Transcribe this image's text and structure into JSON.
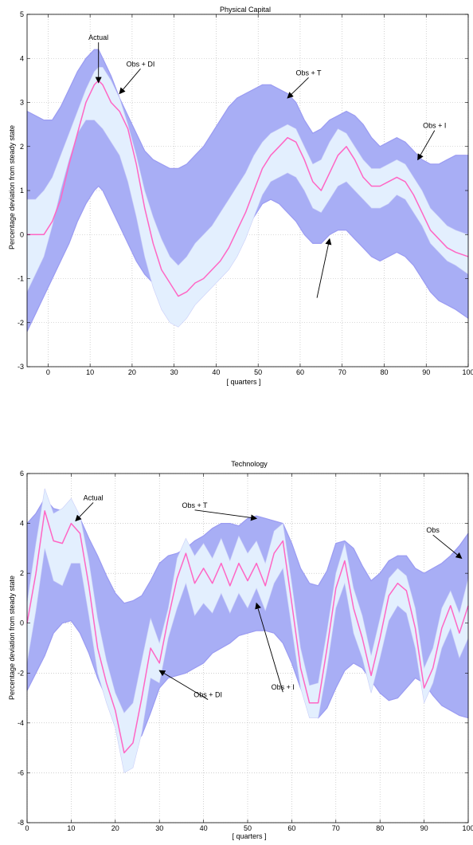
{
  "chart_data": [
    {
      "type": "area",
      "title": "Physical Capital",
      "xlabel": "[ quarters ]",
      "ylabel": "Percentage deviation from steady state",
      "xlim": [
        -5,
        100
      ],
      "ylim": [
        -3,
        5
      ],
      "xticks": [
        "0",
        "10",
        "20",
        "30",
        "40",
        "50",
        "60",
        "70",
        "80",
        "90",
        "100"
      ],
      "yticks": [
        "-3",
        "-2",
        "-1",
        "0",
        "1",
        "2",
        "3",
        "4",
        "5"
      ],
      "grid": true,
      "colors": {
        "outer_band": "#a8aef5",
        "outer_band_dark": "#9b9cf2",
        "inner_band": "#e3effe",
        "actual_line": "#ff66c4"
      },
      "x": [
        -5,
        -3,
        -1,
        1,
        3,
        5,
        7,
        9,
        11,
        12,
        13,
        15,
        17,
        19,
        21,
        23,
        25,
        27,
        29,
        31,
        33,
        35,
        37,
        39,
        41,
        43,
        45,
        47,
        49,
        51,
        53,
        55,
        57,
        59,
        61,
        63,
        65,
        67,
        69,
        71,
        73,
        75,
        77,
        79,
        81,
        83,
        85,
        87,
        89,
        91,
        93,
        95,
        97,
        100
      ],
      "series": [
        {
          "name": "Obs",
          "role": "outer-upper",
          "values": [
            2.8,
            2.7,
            2.6,
            2.6,
            2.9,
            3.3,
            3.7,
            4.0,
            4.2,
            4.2,
            4.0,
            3.6,
            3.1,
            2.7,
            2.3,
            1.9,
            1.7,
            1.6,
            1.5,
            1.5,
            1.6,
            1.8,
            2.0,
            2.3,
            2.6,
            2.9,
            3.1,
            3.2,
            3.3,
            3.4,
            3.4,
            3.3,
            3.2,
            3.0,
            2.6,
            2.3,
            2.4,
            2.6,
            2.7,
            2.8,
            2.7,
            2.5,
            2.2,
            2.0,
            2.1,
            2.2,
            2.1,
            1.9,
            1.7,
            1.6,
            1.6,
            1.7,
            1.8,
            1.8
          ]
        },
        {
          "name": "Obs + DI",
          "role": "inner-upper",
          "values": [
            0.8,
            0.8,
            1.0,
            1.3,
            1.8,
            2.3,
            2.8,
            3.3,
            3.7,
            3.8,
            3.8,
            3.5,
            3.1,
            2.5,
            1.8,
            1.0,
            0.4,
            -0.1,
            -0.5,
            -0.7,
            -0.5,
            -0.2,
            0.0,
            0.2,
            0.5,
            0.8,
            1.1,
            1.4,
            1.8,
            2.1,
            2.3,
            2.4,
            2.5,
            2.4,
            2.0,
            1.6,
            1.7,
            2.1,
            2.4,
            2.3,
            2.0,
            1.7,
            1.5,
            1.5,
            1.6,
            1.7,
            1.6,
            1.3,
            1.0,
            0.6,
            0.4,
            0.2,
            0.1,
            0.0
          ]
        },
        {
          "name": "Actual",
          "role": "line",
          "values": [
            0.0,
            0.0,
            0.0,
            0.3,
            0.8,
            1.6,
            2.3,
            3.0,
            3.4,
            3.5,
            3.4,
            3.0,
            2.8,
            2.4,
            1.6,
            0.6,
            -0.2,
            -0.8,
            -1.1,
            -1.4,
            -1.3,
            -1.1,
            -1.0,
            -0.8,
            -0.6,
            -0.3,
            0.1,
            0.5,
            1.0,
            1.5,
            1.8,
            2.0,
            2.2,
            2.1,
            1.7,
            1.2,
            1.0,
            1.4,
            1.8,
            2.0,
            1.7,
            1.3,
            1.1,
            1.1,
            1.2,
            1.3,
            1.2,
            0.9,
            0.5,
            0.1,
            -0.1,
            -0.3,
            -0.4,
            -0.5
          ]
        },
        {
          "name": "Obs + T",
          "role": "inner-lower",
          "values": [
            -1.3,
            -0.9,
            -0.5,
            0.2,
            1.0,
            1.7,
            2.3,
            2.6,
            2.6,
            2.5,
            2.4,
            2.1,
            1.8,
            1.2,
            0.4,
            -0.5,
            -1.2,
            -1.7,
            -2.0,
            -2.1,
            -1.9,
            -1.6,
            -1.4,
            -1.2,
            -1.0,
            -0.8,
            -0.5,
            -0.1,
            0.4,
            0.9,
            1.2,
            1.3,
            1.4,
            1.3,
            1.0,
            0.6,
            0.5,
            0.8,
            1.1,
            1.2,
            1.0,
            0.8,
            0.6,
            0.6,
            0.7,
            0.9,
            0.8,
            0.5,
            0.2,
            -0.2,
            -0.4,
            -0.6,
            -0.7,
            -0.9
          ]
        },
        {
          "name": "Obs + I",
          "role": "outer-lower",
          "values": [
            -2.2,
            -1.8,
            -1.4,
            -1.0,
            -0.6,
            -0.2,
            0.3,
            0.7,
            1.0,
            1.1,
            1.0,
            0.6,
            0.2,
            -0.2,
            -0.6,
            -0.9,
            -1.1,
            -1.2,
            -1.3,
            -1.3,
            -1.3,
            -1.2,
            -1.1,
            -0.9,
            -0.7,
            -0.5,
            -0.2,
            0.1,
            0.4,
            0.7,
            0.8,
            0.7,
            0.5,
            0.3,
            0.0,
            -0.2,
            -0.2,
            0.0,
            0.1,
            0.1,
            -0.1,
            -0.3,
            -0.5,
            -0.6,
            -0.5,
            -0.4,
            -0.5,
            -0.7,
            -1.0,
            -1.3,
            -1.5,
            -1.6,
            -1.7,
            -1.9
          ]
        }
      ],
      "annotations": [
        {
          "text": "Actual",
          "x": 12,
          "y": 4.4,
          "target_x": 12,
          "target_y": 3.45
        },
        {
          "text": "Obs + DI",
          "x": 22,
          "y": 3.8,
          "target_x": 17,
          "target_y": 3.2
        },
        {
          "text": "Obs + T",
          "x": 62,
          "y": 3.6,
          "target_x": 57,
          "target_y": 3.1
        },
        {
          "text": "Obs + I",
          "x": 92,
          "y": 2.4,
          "target_x": 88,
          "target_y": 1.7
        },
        {
          "text": "",
          "x": 64,
          "y": -1.4,
          "target_x": 67,
          "target_y": -0.1
        }
      ]
    },
    {
      "type": "area",
      "title": "Technology",
      "xlabel": "[ quarters ]",
      "ylabel": "Percentage deviation from steady state",
      "xlim": [
        0,
        100
      ],
      "ylim": [
        -8,
        6
      ],
      "xticks": [
        "0",
        "10",
        "20",
        "30",
        "40",
        "50",
        "60",
        "70",
        "80",
        "90",
        "100"
      ],
      "yticks": [
        "-8",
        "-6",
        "-4",
        "-2",
        "0",
        "2",
        "4",
        "6"
      ],
      "grid": true,
      "colors": {
        "outer_band": "#a8aef5",
        "outer_band_dark": "#9b9cf2",
        "inner_band": "#e3effe",
        "actual_line": "#ff66c4"
      },
      "x": [
        0,
        2,
        4,
        6,
        8,
        10,
        12,
        14,
        16,
        18,
        20,
        22,
        24,
        26,
        28,
        30,
        32,
        34,
        36,
        38,
        40,
        42,
        44,
        46,
        48,
        50,
        52,
        54,
        56,
        58,
        60,
        62,
        64,
        66,
        68,
        70,
        72,
        74,
        76,
        78,
        80,
        82,
        84,
        86,
        88,
        90,
        92,
        94,
        96,
        98,
        100
      ],
      "series": [
        {
          "name": "Obs",
          "role": "outer-upper",
          "values": [
            4.0,
            4.4,
            5.0,
            4.6,
            4.5,
            4.8,
            4.2,
            3.4,
            2.7,
            1.9,
            1.2,
            0.8,
            0.9,
            1.1,
            1.7,
            2.4,
            2.7,
            2.8,
            3.0,
            3.3,
            3.5,
            3.8,
            4.0,
            4.0,
            3.9,
            4.2,
            4.3,
            4.2,
            4.1,
            4.0,
            3.2,
            2.2,
            1.6,
            1.5,
            2.1,
            3.2,
            3.3,
            3.0,
            2.3,
            1.7,
            2.0,
            2.5,
            2.7,
            2.7,
            2.2,
            2.0,
            2.2,
            2.4,
            2.7,
            3.1,
            3.6
          ]
        },
        {
          "name": "Obs + DI",
          "role": "inner-upper",
          "values": [
            0.8,
            3.2,
            5.4,
            4.4,
            4.6,
            5.0,
            4.3,
            2.5,
            0.2,
            -1.5,
            -2.8,
            -3.6,
            -3.2,
            -1.5,
            0.2,
            -0.8,
            0.6,
            2.6,
            3.4,
            2.7,
            3.2,
            2.6,
            3.4,
            2.5,
            3.5,
            2.8,
            3.3,
            2.4,
            3.7,
            4.0,
            1.6,
            -1.0,
            -2.5,
            -2.4,
            -0.3,
            2.0,
            3.2,
            1.4,
            0.3,
            -1.3,
            0.2,
            1.8,
            2.2,
            1.9,
            0.6,
            -1.8,
            -1.0,
            0.6,
            1.3,
            0.4,
            1.8
          ]
        },
        {
          "name": "Actual",
          "role": "line",
          "values": [
            0.0,
            2.0,
            4.5,
            3.3,
            3.2,
            4.0,
            3.6,
            1.5,
            -1.0,
            -2.4,
            -3.5,
            -5.2,
            -4.8,
            -3.0,
            -1.0,
            -1.6,
            0.2,
            1.8,
            2.8,
            1.6,
            2.2,
            1.6,
            2.4,
            1.5,
            2.4,
            1.7,
            2.4,
            1.5,
            2.8,
            3.3,
            0.8,
            -1.8,
            -3.2,
            -3.2,
            -1.0,
            1.4,
            2.5,
            0.6,
            -0.6,
            -2.1,
            -0.6,
            1.1,
            1.6,
            1.3,
            -0.2,
            -2.6,
            -1.8,
            -0.2,
            0.7,
            -0.4,
            0.7
          ]
        },
        {
          "name": "Obs + T",
          "role": "inner-lower",
          "values": [
            -1.6,
            0.5,
            3.0,
            1.7,
            1.5,
            2.4,
            2.4,
            0.3,
            -2.0,
            -3.2,
            -4.2,
            -6.0,
            -5.8,
            -4.4,
            -2.2,
            -2.4,
            -0.6,
            0.6,
            1.6,
            0.3,
            0.8,
            0.4,
            1.2,
            0.4,
            1.2,
            0.6,
            1.4,
            0.5,
            1.6,
            2.2,
            -0.2,
            -2.6,
            -3.8,
            -3.8,
            -1.8,
            0.6,
            1.6,
            -0.4,
            -1.4,
            -2.8,
            -1.4,
            0.1,
            0.7,
            0.4,
            -1.0,
            -3.2,
            -2.4,
            -1.0,
            -0.2,
            -1.4,
            -0.6
          ]
        },
        {
          "name": "Obs + I",
          "role": "outer-lower",
          "values": [
            -2.7,
            -2.0,
            -1.3,
            -0.4,
            0.0,
            0.1,
            -0.4,
            -1.2,
            -2.2,
            -3.0,
            -3.8,
            -4.5,
            -4.9,
            -4.5,
            -3.6,
            -2.6,
            -2.2,
            -2.1,
            -2.0,
            -1.8,
            -1.6,
            -1.2,
            -1.0,
            -0.8,
            -0.5,
            -0.4,
            -0.3,
            -0.3,
            -0.4,
            -0.8,
            -1.6,
            -2.6,
            -3.4,
            -3.8,
            -3.4,
            -2.6,
            -1.9,
            -1.6,
            -1.8,
            -2.3,
            -2.8,
            -3.1,
            -3.0,
            -2.6,
            -2.2,
            -2.4,
            -2.9,
            -3.3,
            -3.5,
            -3.7,
            -3.8
          ]
        }
      ],
      "annotations": [
        {
          "text": "Actual",
          "x": 15,
          "y": 4.9,
          "target_x": 11,
          "target_y": 4.1
        },
        {
          "text": "Obs + T",
          "x": 38,
          "y": 4.6,
          "target_x": 52,
          "target_y": 4.2
        },
        {
          "text": "Obs",
          "x": 92,
          "y": 3.6,
          "target_x": 98.5,
          "target_y": 2.6
        },
        {
          "text": "Obs + DI",
          "x": 41,
          "y": -3.0,
          "target_x": 30,
          "target_y": -1.9
        },
        {
          "text": "Obs + I",
          "x": 58,
          "y": -2.7,
          "target_x": 52,
          "target_y": 0.8
        }
      ]
    }
  ]
}
